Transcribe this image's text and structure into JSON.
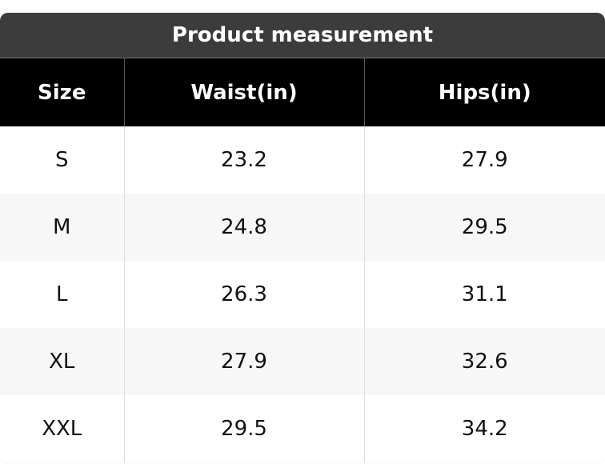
{
  "table": {
    "title": "Product measurement",
    "columns": [
      "Size",
      "Waist(in)",
      "Hips(in)"
    ],
    "rows": [
      [
        "S",
        "23.2",
        "27.9"
      ],
      [
        "M",
        "24.8",
        "29.5"
      ],
      [
        "L",
        "26.3",
        "31.1"
      ],
      [
        "XL",
        "27.9",
        "32.6"
      ],
      [
        "XXL",
        "29.5",
        "34.2"
      ]
    ]
  }
}
